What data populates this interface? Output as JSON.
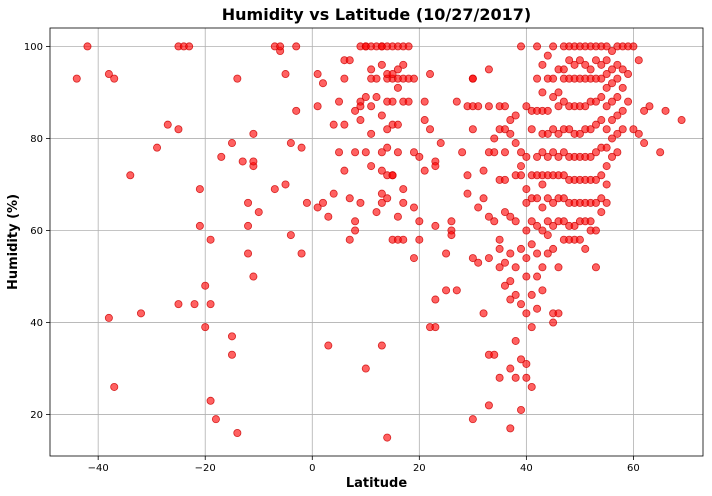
{
  "chart_data": {
    "type": "scatter",
    "title": "Humidity vs Latitude (10/27/2017)",
    "xlabel": "Latitude",
    "ylabel": "Humidity (%)",
    "xlim": [
      -49,
      73
    ],
    "ylim": [
      11,
      104
    ],
    "xticks": [
      -40,
      -20,
      0,
      20,
      40,
      60
    ],
    "yticks": [
      20,
      40,
      60,
      80,
      100
    ],
    "grid": true,
    "marker_color": "#ff0000",
    "marker_edge_color": "#cc0000",
    "points": [
      [
        -42,
        100
      ],
      [
        -44,
        93
      ],
      [
        -38,
        94
      ],
      [
        -37,
        93
      ],
      [
        -34,
        72
      ],
      [
        -38,
        41
      ],
      [
        -37,
        26
      ],
      [
        -32,
        42
      ],
      [
        -29,
        78
      ],
      [
        -27,
        83
      ],
      [
        -25,
        100
      ],
      [
        -24,
        100
      ],
      [
        -23,
        100
      ],
      [
        -25,
        82
      ],
      [
        -25,
        44
      ],
      [
        -22,
        44
      ],
      [
        -21,
        61
      ],
      [
        -21,
        69
      ],
      [
        -20,
        48
      ],
      [
        -20,
        39
      ],
      [
        -19,
        58
      ],
      [
        -19,
        44
      ],
      [
        -19,
        23
      ],
      [
        -18,
        19
      ],
      [
        -17,
        76
      ],
      [
        -15,
        79
      ],
      [
        -15,
        37
      ],
      [
        -15,
        33
      ],
      [
        -14,
        16
      ],
      [
        -14,
        93
      ],
      [
        -13,
        75
      ],
      [
        -12,
        66
      ],
      [
        -12,
        61
      ],
      [
        -12,
        55
      ],
      [
        -11,
        50
      ],
      [
        -11,
        74
      ],
      [
        -11,
        75
      ],
      [
        -11,
        81
      ],
      [
        -10,
        64
      ],
      [
        -7,
        100
      ],
      [
        -7,
        69
      ],
      [
        -6,
        99
      ],
      [
        -6,
        100
      ],
      [
        -5,
        94
      ],
      [
        -5,
        70
      ],
      [
        -4,
        79
      ],
      [
        -4,
        59
      ],
      [
        -3,
        86
      ],
      [
        -3,
        100
      ],
      [
        -2,
        55
      ],
      [
        -2,
        78
      ],
      [
        -1,
        66
      ],
      [
        1,
        94
      ],
      [
        1,
        65
      ],
      [
        1,
        87
      ],
      [
        2,
        66
      ],
      [
        2,
        92
      ],
      [
        3,
        63
      ],
      [
        3,
        35
      ],
      [
        4,
        83
      ],
      [
        4,
        68
      ],
      [
        5,
        77
      ],
      [
        5,
        88
      ],
      [
        6,
        83
      ],
      [
        6,
        73
      ],
      [
        6,
        93
      ],
      [
        6,
        97
      ],
      [
        7,
        97
      ],
      [
        7,
        67
      ],
      [
        7,
        58
      ],
      [
        8,
        77
      ],
      [
        8,
        86
      ],
      [
        8,
        60
      ],
      [
        8,
        62
      ],
      [
        9,
        100
      ],
      [
        9,
        88
      ],
      [
        9,
        87
      ],
      [
        9,
        84
      ],
      [
        9,
        66
      ],
      [
        10,
        89
      ],
      [
        10,
        100
      ],
      [
        10,
        30
      ],
      [
        10,
        100
      ],
      [
        10,
        77
      ],
      [
        11,
        87
      ],
      [
        11,
        95
      ],
      [
        11,
        93
      ],
      [
        11,
        81
      ],
      [
        11,
        74
      ],
      [
        11,
        100
      ],
      [
        12,
        100
      ],
      [
        12,
        89
      ],
      [
        12,
        93
      ],
      [
        12,
        64
      ],
      [
        13,
        100
      ],
      [
        13,
        96
      ],
      [
        13,
        100
      ],
      [
        13,
        85
      ],
      [
        13,
        77
      ],
      [
        13,
        68
      ],
      [
        13,
        66
      ],
      [
        13,
        35
      ],
      [
        13,
        73
      ],
      [
        14,
        100
      ],
      [
        14,
        93
      ],
      [
        14,
        94
      ],
      [
        14,
        88
      ],
      [
        14,
        82
      ],
      [
        14,
        78
      ],
      [
        14,
        72
      ],
      [
        14,
        67
      ],
      [
        14,
        15
      ],
      [
        15,
        100
      ],
      [
        15,
        93
      ],
      [
        15,
        94
      ],
      [
        15,
        88
      ],
      [
        15,
        83
      ],
      [
        15,
        72
      ],
      [
        15,
        72
      ],
      [
        15,
        58
      ],
      [
        16,
        100
      ],
      [
        16,
        93
      ],
      [
        16,
        95
      ],
      [
        16,
        91
      ],
      [
        16,
        83
      ],
      [
        16,
        77
      ],
      [
        16,
        58
      ],
      [
        16,
        63
      ],
      [
        17,
        100
      ],
      [
        17,
        93
      ],
      [
        17,
        96
      ],
      [
        17,
        88
      ],
      [
        17,
        69
      ],
      [
        17,
        66
      ],
      [
        17,
        58
      ],
      [
        18,
        100
      ],
      [
        18,
        93
      ],
      [
        18,
        88
      ],
      [
        19,
        93
      ],
      [
        19,
        77
      ],
      [
        19,
        65
      ],
      [
        19,
        54
      ],
      [
        20,
        76
      ],
      [
        20,
        62
      ],
      [
        20,
        58
      ],
      [
        21,
        88
      ],
      [
        21,
        84
      ],
      [
        21,
        73
      ],
      [
        22,
        82
      ],
      [
        22,
        94
      ],
      [
        22,
        39
      ],
      [
        23,
        75
      ],
      [
        23,
        74
      ],
      [
        23,
        61
      ],
      [
        23,
        45
      ],
      [
        23,
        39
      ],
      [
        24,
        79
      ],
      [
        25,
        47
      ],
      [
        25,
        55
      ],
      [
        26,
        62
      ],
      [
        26,
        60
      ],
      [
        26,
        59
      ],
      [
        27,
        88
      ],
      [
        27,
        47
      ],
      [
        28,
        77
      ],
      [
        29,
        72
      ],
      [
        29,
        87
      ],
      [
        29,
        68
      ],
      [
        30,
        87
      ],
      [
        30,
        93
      ],
      [
        30,
        93
      ],
      [
        30,
        82
      ],
      [
        30,
        54
      ],
      [
        30,
        19
      ],
      [
        31,
        87
      ],
      [
        31,
        65
      ],
      [
        31,
        53
      ],
      [
        32,
        73
      ],
      [
        32,
        67
      ],
      [
        32,
        42
      ],
      [
        33,
        95
      ],
      [
        33,
        87
      ],
      [
        33,
        77
      ],
      [
        33,
        63
      ],
      [
        33,
        54
      ],
      [
        33,
        33
      ],
      [
        33,
        22
      ],
      [
        34,
        80
      ],
      [
        34,
        77
      ],
      [
        34,
        62
      ],
      [
        34,
        33
      ],
      [
        35,
        87
      ],
      [
        35,
        82
      ],
      [
        35,
        71
      ],
      [
        35,
        58
      ],
      [
        35,
        56
      ],
      [
        35,
        52
      ],
      [
        35,
        28
      ],
      [
        36,
        87
      ],
      [
        36,
        82
      ],
      [
        36,
        77
      ],
      [
        36,
        71
      ],
      [
        36,
        64
      ],
      [
        36,
        53
      ],
      [
        36,
        48
      ],
      [
        37,
        84
      ],
      [
        37,
        81
      ],
      [
        37,
        63
      ],
      [
        37,
        55
      ],
      [
        37,
        49
      ],
      [
        37,
        45
      ],
      [
        37,
        30
      ],
      [
        37,
        17
      ],
      [
        38,
        85
      ],
      [
        38,
        79
      ],
      [
        38,
        72
      ],
      [
        38,
        62
      ],
      [
        38,
        52
      ],
      [
        38,
        46
      ],
      [
        38,
        36
      ],
      [
        38,
        28
      ],
      [
        39,
        100
      ],
      [
        39,
        77
      ],
      [
        39,
        74
      ],
      [
        39,
        72
      ],
      [
        39,
        56
      ],
      [
        39,
        44
      ],
      [
        39,
        32
      ],
      [
        39,
        21
      ],
      [
        40,
        87
      ],
      [
        40,
        76
      ],
      [
        40,
        69
      ],
      [
        40,
        66
      ],
      [
        40,
        60
      ],
      [
        40,
        54
      ],
      [
        40,
        50
      ],
      [
        40,
        42
      ],
      [
        40,
        31
      ],
      [
        40,
        28
      ],
      [
        41,
        86
      ],
      [
        41,
        82
      ],
      [
        41,
        72
      ],
      [
        41,
        67
      ],
      [
        41,
        62
      ],
      [
        41,
        57
      ],
      [
        41,
        46
      ],
      [
        41,
        39
      ],
      [
        41,
        26
      ],
      [
        42,
        100
      ],
      [
        42,
        93
      ],
      [
        42,
        86
      ],
      [
        42,
        76
      ],
      [
        42,
        72
      ],
      [
        42,
        67
      ],
      [
        42,
        61
      ],
      [
        42,
        55
      ],
      [
        42,
        50
      ],
      [
        42,
        43
      ],
      [
        43,
        96
      ],
      [
        43,
        90
      ],
      [
        43,
        86
      ],
      [
        43,
        81
      ],
      [
        43,
        77
      ],
      [
        43,
        72
      ],
      [
        43,
        70
      ],
      [
        43,
        65
      ],
      [
        43,
        60
      ],
      [
        43,
        52
      ],
      [
        43,
        47
      ],
      [
        44,
        98
      ],
      [
        44,
        93
      ],
      [
        44,
        86
      ],
      [
        44,
        81
      ],
      [
        44,
        76
      ],
      [
        44,
        72
      ],
      [
        44,
        67
      ],
      [
        44,
        62
      ],
      [
        44,
        59
      ],
      [
        44,
        55
      ],
      [
        45,
        100
      ],
      [
        45,
        93
      ],
      [
        45,
        89
      ],
      [
        45,
        82
      ],
      [
        45,
        77
      ],
      [
        45,
        72
      ],
      [
        45,
        66
      ],
      [
        45,
        61
      ],
      [
        45,
        56
      ],
      [
        45,
        42
      ],
      [
        45,
        40
      ],
      [
        46,
        95
      ],
      [
        46,
        90
      ],
      [
        46,
        87
      ],
      [
        46,
        81
      ],
      [
        46,
        76
      ],
      [
        46,
        72
      ],
      [
        46,
        67
      ],
      [
        46,
        62
      ],
      [
        46,
        52
      ],
      [
        46,
        42
      ],
      [
        47,
        100
      ],
      [
        47,
        95
      ],
      [
        47,
        93
      ],
      [
        47,
        88
      ],
      [
        47,
        82
      ],
      [
        47,
        77
      ],
      [
        47,
        72
      ],
      [
        47,
        67
      ],
      [
        47,
        62
      ],
      [
        47,
        58
      ],
      [
        48,
        100
      ],
      [
        48,
        97
      ],
      [
        48,
        93
      ],
      [
        48,
        87
      ],
      [
        48,
        82
      ],
      [
        48,
        76
      ],
      [
        48,
        71
      ],
      [
        48,
        66
      ],
      [
        48,
        61
      ],
      [
        48,
        58
      ],
      [
        49,
        100
      ],
      [
        49,
        96
      ],
      [
        49,
        93
      ],
      [
        49,
        87
      ],
      [
        49,
        81
      ],
      [
        49,
        76
      ],
      [
        49,
        71
      ],
      [
        49,
        66
      ],
      [
        49,
        61
      ],
      [
        49,
        58
      ],
      [
        50,
        100
      ],
      [
        50,
        97
      ],
      [
        50,
        93
      ],
      [
        50,
        87
      ],
      [
        50,
        81
      ],
      [
        50,
        76
      ],
      [
        50,
        71
      ],
      [
        50,
        66
      ],
      [
        50,
        62
      ],
      [
        50,
        58
      ],
      [
        51,
        100
      ],
      [
        51,
        96
      ],
      [
        51,
        93
      ],
      [
        51,
        87
      ],
      [
        51,
        82
      ],
      [
        51,
        76
      ],
      [
        51,
        71
      ],
      [
        51,
        66
      ],
      [
        51,
        62
      ],
      [
        51,
        56
      ],
      [
        52,
        100
      ],
      [
        52,
        95
      ],
      [
        52,
        93
      ],
      [
        52,
        88
      ],
      [
        52,
        82
      ],
      [
        52,
        76
      ],
      [
        52,
        71
      ],
      [
        52,
        66
      ],
      [
        52,
        62
      ],
      [
        52,
        60
      ],
      [
        53,
        100
      ],
      [
        53,
        97
      ],
      [
        53,
        93
      ],
      [
        53,
        88
      ],
      [
        53,
        83
      ],
      [
        53,
        77
      ],
      [
        53,
        71
      ],
      [
        53,
        66
      ],
      [
        53,
        60
      ],
      [
        53,
        52
      ],
      [
        54,
        100
      ],
      [
        54,
        96
      ],
      [
        54,
        93
      ],
      [
        54,
        89
      ],
      [
        54,
        84
      ],
      [
        54,
        78
      ],
      [
        54,
        72
      ],
      [
        54,
        67
      ],
      [
        54,
        64
      ],
      [
        55,
        100
      ],
      [
        55,
        97
      ],
      [
        55,
        94
      ],
      [
        55,
        91
      ],
      [
        55,
        87
      ],
      [
        55,
        82
      ],
      [
        55,
        78
      ],
      [
        55,
        74
      ],
      [
        55,
        70
      ],
      [
        55,
        66
      ],
      [
        56,
        99
      ],
      [
        56,
        95
      ],
      [
        56,
        92
      ],
      [
        56,
        88
      ],
      [
        56,
        84
      ],
      [
        56,
        80
      ],
      [
        56,
        76
      ],
      [
        57,
        100
      ],
      [
        57,
        96
      ],
      [
        57,
        93
      ],
      [
        57,
        89
      ],
      [
        57,
        85
      ],
      [
        57,
        81
      ],
      [
        57,
        77
      ],
      [
        58,
        100
      ],
      [
        58,
        95
      ],
      [
        58,
        91
      ],
      [
        58,
        86
      ],
      [
        58,
        82
      ],
      [
        59,
        100
      ],
      [
        59,
        94
      ],
      [
        59,
        88
      ],
      [
        60,
        82
      ],
      [
        60,
        100
      ],
      [
        61,
        97
      ],
      [
        61,
        81
      ],
      [
        62,
        79
      ],
      [
        62,
        86
      ],
      [
        63,
        87
      ],
      [
        65,
        77
      ],
      [
        66,
        86
      ],
      [
        69,
        84
      ]
    ]
  }
}
